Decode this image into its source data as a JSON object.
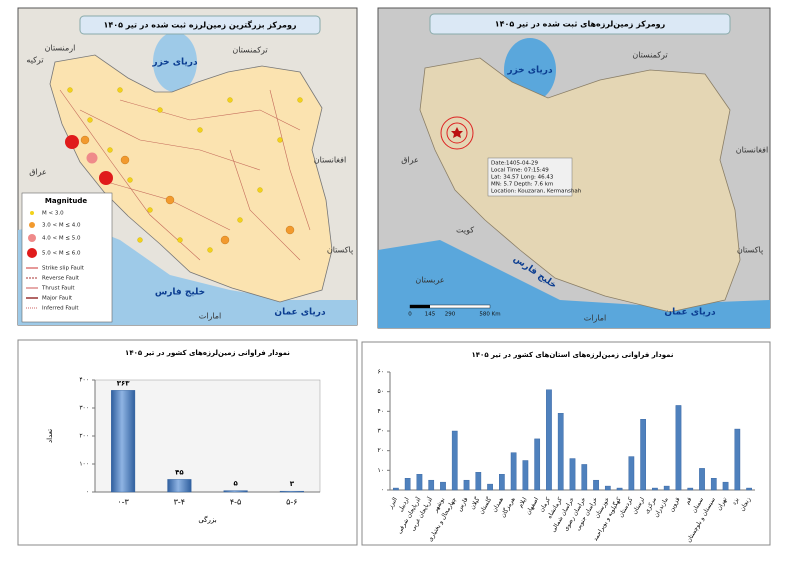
{
  "maps": {
    "left": {
      "title": "رومرکز بزرگترین زمین‌لرزه ثبت شده در تیر ۱۴۰۵",
      "places": [
        "ترکمنستان",
        "ارمنستان",
        "ترکیه",
        "دریای خزر",
        "افغانستان",
        "عراق",
        "پاکستان",
        "خلیج فارس",
        "دریای عمان",
        "امارات"
      ],
      "legend": {
        "title": "Magnitude",
        "items": [
          "M < 3.0",
          "3.0 < M ≤ 4.0",
          "4.0 < M ≤ 5.0",
          "5.0 < M ≤ 6.0",
          "Strike slip Fault",
          "Reverse Fault",
          "Thrust Fault",
          "Major Fault",
          "Inferred Fault"
        ]
      }
    },
    "right": {
      "title": "رومرکز زمین‌لرزه‌های ثبت شده در تیر ۱۴۰۵",
      "places": [
        "ترکمنستان",
        "دریای خزر",
        "عراق",
        "کویت",
        "عربستان",
        "خلیج فارس",
        "امارات",
        "دریای عمان",
        "افغانستان",
        "پاکستان"
      ],
      "info": [
        "Date:1405-04-29",
        "Local Time: 07:15:49",
        "Lat: 34.57   Long: 46.43",
        "MN: 5.7   Depth: 7.6 km",
        "Location: Kouzaran, Kermanshah"
      ],
      "scale": [
        "0",
        "145",
        "290",
        "580 Km"
      ]
    }
  },
  "chart_data": [
    {
      "type": "bar",
      "title": "نمودار فراوانی زمین‌لرزه‌های کشور در تیر ۱۴۰۵",
      "xlabel": "بزرگی",
      "ylabel": "تعداد",
      "categories": [
        "۰-۳",
        "۳-۴",
        "۴-۵",
        "۵-۶"
      ],
      "values": [
        363,
        45,
        5,
        3
      ],
      "value_labels": [
        "۳۶۳",
        "۴۵",
        "۵",
        "۳"
      ],
      "color": "#4f81bd",
      "ylim": [
        0,
        400
      ],
      "yticks": [
        {
          "value": 0,
          "label": "۰"
        },
        {
          "value": 100,
          "label": "۱۰۰"
        },
        {
          "value": 200,
          "label": "۲۰۰"
        },
        {
          "value": 300,
          "label": "۳۰۰"
        },
        {
          "value": 400,
          "label": "۴۰۰"
        }
      ]
    },
    {
      "type": "bar",
      "title": "نمودار فراوانی زمین‌لرزه‌های استان‌های کشور در تیر ۱۴۰۵",
      "categories": [
        "البرز",
        "اردبیل",
        "آذربایجان شرقی",
        "آذربایجان غربی",
        "بوشهر",
        "چهارمحال و بختیاری",
        "فارس",
        "گیلان",
        "گلستان",
        "همدان",
        "هرمزگان",
        "ایلام",
        "اصفهان",
        "کرمان",
        "کرمانشاه",
        "خراسان شمالی",
        "خراسان رضوی",
        "خراسان جنوبی",
        "خوزستان",
        "کهگیلویه و بویراحمد",
        "کردستان",
        "لرستان",
        "مرکزی",
        "مازندران",
        "قزوین",
        "قم",
        "سمنان",
        "سیستان و بلوچستان",
        "تهران",
        "یزد",
        "زنجان"
      ],
      "values": [
        1,
        6,
        8,
        5,
        4,
        30,
        5,
        9,
        3,
        8,
        19,
        15,
        26,
        51,
        39,
        16,
        13,
        5,
        2,
        1,
        17,
        36,
        1,
        2,
        43,
        1,
        11,
        6,
        4,
        31,
        1
      ],
      "color": "#4f81bd",
      "ylim": [
        0,
        60
      ],
      "yticks": [
        {
          "value": 0,
          "label": "۰"
        },
        {
          "value": 10,
          "label": "۱۰"
        },
        {
          "value": 20,
          "label": "۲۰"
        },
        {
          "value": 30,
          "label": "۳۰"
        },
        {
          "value": 40,
          "label": "۴۰"
        },
        {
          "value": 50,
          "label": "۵۰"
        },
        {
          "value": 60,
          "label": "۶۰"
        }
      ]
    }
  ]
}
